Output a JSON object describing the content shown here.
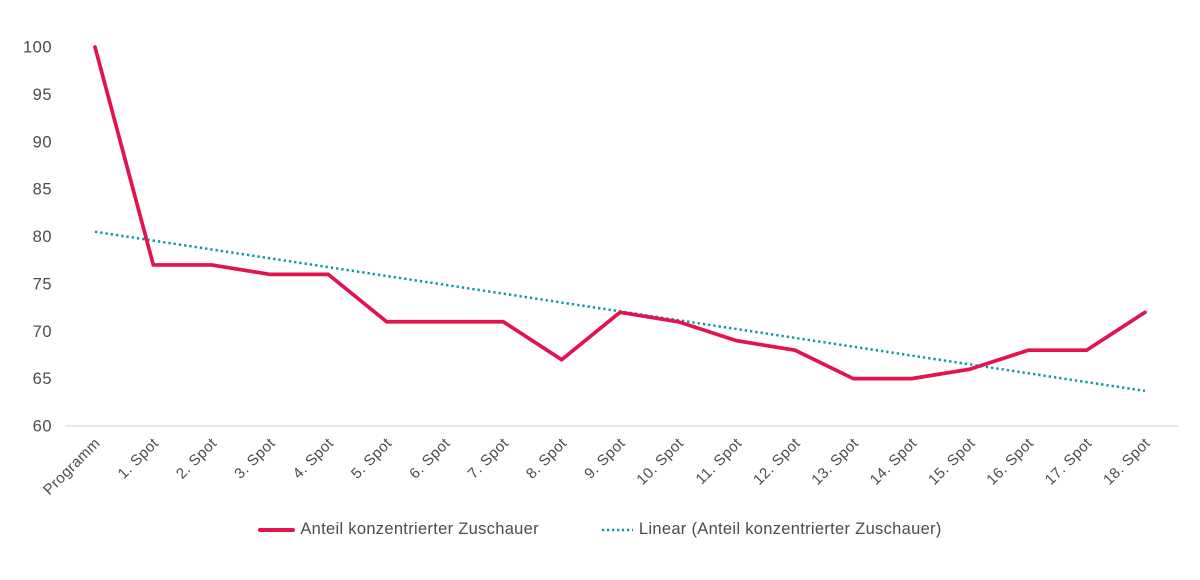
{
  "chart_data": {
    "type": "line",
    "title": "",
    "xlabel": "",
    "ylabel": "",
    "categories": [
      "Programm",
      "1. Spot",
      "2. Spot",
      "3. Spot",
      "4. Spot",
      "5. Spot",
      "6. Spot",
      "7. Spot",
      "8. Spot",
      "9. Spot",
      "10. Spot",
      "11. Spot",
      "12. Spot",
      "13. Spot",
      "14. Spot",
      "15. Spot",
      "16. Spot",
      "17. Spot",
      "18. Spot"
    ],
    "series": [
      {
        "name": "Anteil konzentrierter Zuschauer",
        "style": "solid",
        "color": "#e2134f",
        "values": [
          100,
          77,
          77,
          76,
          76,
          71,
          71,
          71,
          67,
          72,
          71,
          69,
          68,
          65,
          65,
          66,
          68,
          68,
          72
        ]
      },
      {
        "name": "Linear (Anteil konzentrierter Zuschauer)",
        "style": "dotted",
        "color": "#0c97a0",
        "trend_start": 80.5,
        "trend_end": 63.7
      }
    ],
    "ylim": [
      60,
      100
    ],
    "yticks": [
      60,
      65,
      70,
      75,
      80,
      85,
      90,
      95,
      100
    ],
    "grid": false,
    "legend_position": "bottom",
    "axis_line_color": "#d9d9d9",
    "label_color": "#4c4c4f"
  }
}
